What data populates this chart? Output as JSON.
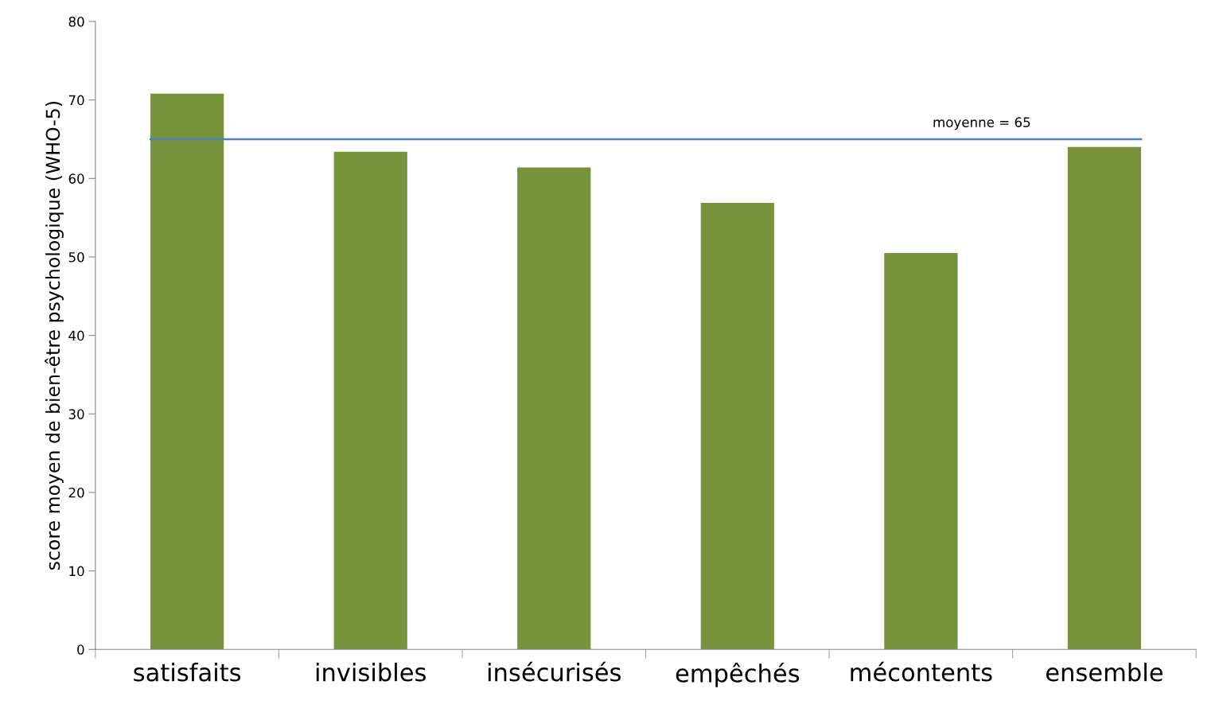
{
  "chart_data": {
    "type": "bar",
    "ylabel": "score moyen de bien-être psychologique (WHO-5)",
    "categories": [
      "satisfaits",
      "invisibles",
      "insécurisés",
      "empêchés",
      "mécontents",
      "ensemble"
    ],
    "values": [
      70.8,
      63.4,
      61.4,
      56.9,
      50.5,
      64.0
    ],
    "color": "#77933c",
    "ylim": [
      0,
      80
    ],
    "yticks": [
      0,
      10,
      20,
      30,
      40,
      50,
      60,
      70,
      80
    ],
    "grid": false,
    "legend": false,
    "ref_lines": [
      {
        "axis": "y",
        "value": 65,
        "label": "moyenne = 65",
        "color": "#4f81bd",
        "line_style": "solid"
      }
    ]
  }
}
